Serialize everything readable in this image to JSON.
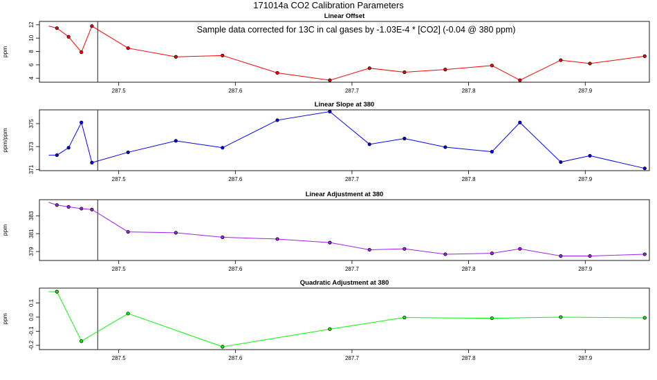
{
  "figure": {
    "title": "171014a   CO2 Calibration Parameters"
  },
  "chart_data": [
    {
      "type": "line",
      "title": "Linear Offset",
      "ylabel": "ppm",
      "annotation": "Sample data corrected for 13C in cal gases by -1.03E-4 * [CO2] (-0.04 @ 380 ppm)",
      "color": "#ff0000",
      "xlim": [
        287.432,
        287.955
      ],
      "ylim": [
        3.4,
        12.5
      ],
      "xticks": [
        287.5,
        287.6,
        287.7,
        287.8,
        287.9
      ],
      "yticks": [
        4,
        6,
        8,
        10,
        12
      ],
      "vline": 287.482,
      "x": [
        287.44,
        287.447,
        287.457,
        287.468,
        287.477,
        287.508,
        287.549,
        287.589,
        287.636,
        287.681,
        287.715,
        287.745,
        287.78,
        287.82,
        287.844,
        287.879,
        287.904,
        287.951
      ],
      "y": [
        11.8,
        11.5,
        10.2,
        7.9,
        11.8,
        8.5,
        7.2,
        7.4,
        4.8,
        3.7,
        5.5,
        4.9,
        5.3,
        5.9,
        3.7,
        6.7,
        6.2,
        7.3
      ]
    },
    {
      "type": "line",
      "title": "Linear Slope at 380",
      "ylabel": "ppm/ppm",
      "color": "#0000ff",
      "xlim": [
        287.432,
        287.955
      ],
      "ylim": [
        370.9,
        376.2
      ],
      "xticks": [
        287.5,
        287.6,
        287.7,
        287.8,
        287.9
      ],
      "yticks": [
        371,
        373,
        375
      ],
      "ytick_labels": [
        "371",
        "373",
        "375"
      ],
      "vline": 287.482,
      "x": [
        287.44,
        287.447,
        287.457,
        287.468,
        287.477,
        287.508,
        287.549,
        287.589,
        287.636,
        287.681,
        287.715,
        287.745,
        287.78,
        287.82,
        287.844,
        287.879,
        287.904,
        287.951
      ],
      "y": [
        372.25,
        372.25,
        372.9,
        375.1,
        371.6,
        372.5,
        373.5,
        372.9,
        375.3,
        376.05,
        373.2,
        373.7,
        372.95,
        372.55,
        375.1,
        371.65,
        372.2,
        371.1
      ]
    },
    {
      "type": "line",
      "title": "Linear Adjustment at 380",
      "ylabel": "ppm",
      "color": "#a020f0",
      "xlim": [
        287.432,
        287.955
      ],
      "ylim": [
        378.0,
        384.8
      ],
      "xticks": [
        287.5,
        287.6,
        287.7,
        287.8,
        287.9
      ],
      "yticks": [
        379,
        381,
        383
      ],
      "vline": 287.482,
      "x": [
        287.44,
        287.447,
        287.457,
        287.468,
        287.477,
        287.508,
        287.549,
        287.589,
        287.636,
        287.681,
        287.715,
        287.745,
        287.78,
        287.82,
        287.844,
        287.879,
        287.904,
        287.951
      ],
      "y": [
        384.5,
        384.2,
        384.0,
        383.8,
        383.7,
        381.2,
        381.1,
        380.6,
        380.4,
        380.0,
        379.2,
        379.3,
        378.7,
        378.8,
        379.3,
        378.5,
        378.5,
        378.7
      ]
    },
    {
      "type": "line",
      "title": "Quadratic Adjustment at 380",
      "ylabel": "ppm",
      "color": "#00ff00",
      "xlim": [
        287.432,
        287.955
      ],
      "ylim": [
        -0.23,
        0.205
      ],
      "xticks": [
        287.5,
        287.6,
        287.7,
        287.8,
        287.9
      ],
      "yticks": [
        -0.2,
        -0.1,
        0.0,
        0.1
      ],
      "ytick_labels": [
        "-0.2",
        "-0.1",
        "0.0",
        "0.1"
      ],
      "vline": 287.482,
      "x": [
        287.44,
        287.447,
        287.468,
        287.508,
        287.589,
        287.681,
        287.745,
        287.82,
        287.879,
        287.951
      ],
      "y": [
        0.18,
        0.18,
        -0.17,
        0.025,
        -0.21,
        -0.085,
        -0.003,
        -0.008,
        0.0,
        -0.005
      ]
    }
  ]
}
